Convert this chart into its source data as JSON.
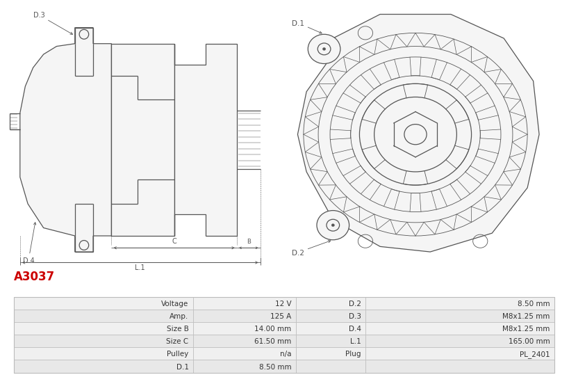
{
  "title": "A3037",
  "title_color": "#cc0000",
  "bg_color": "#ffffff",
  "table_rows": [
    [
      "Voltage",
      "12 V",
      "D.2",
      "8.50 mm"
    ],
    [
      "Amp.",
      "125 A",
      "D.3",
      "M8x1.25 mm"
    ],
    [
      "Size B",
      "14.00 mm",
      "D.4",
      "M8x1.25 mm"
    ],
    [
      "Size C",
      "61.50 mm",
      "L.1",
      "165.00 mm"
    ],
    [
      "Pulley",
      "n/a",
      "Plug",
      "PL_2401"
    ],
    [
      "D.1",
      "8.50 mm",
      "",
      ""
    ]
  ],
  "line_color": "#555555",
  "dim_color": "#555555",
  "table_row_bg1": "#f0f0f0",
  "table_row_bg2": "#e8e8e8",
  "table_border": "#bbbbbb"
}
